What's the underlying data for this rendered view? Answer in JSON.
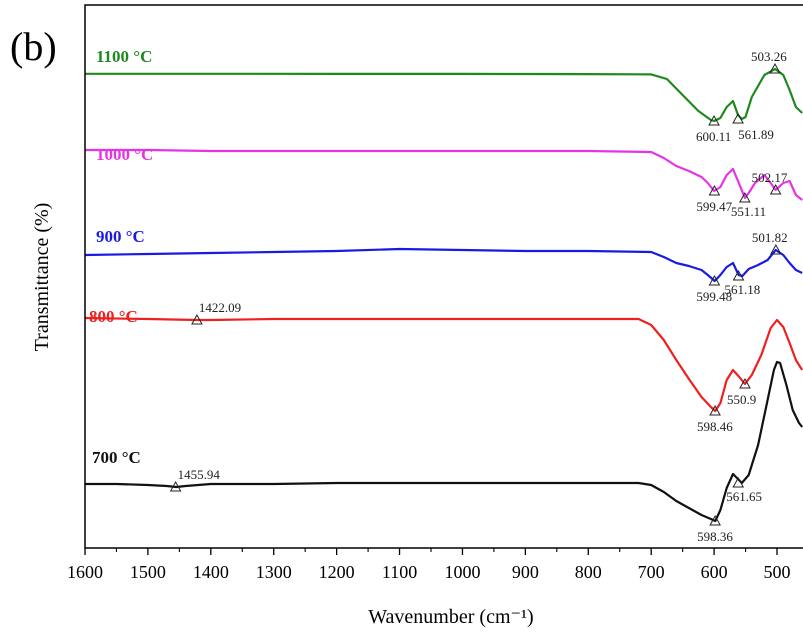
{
  "panel_label": "(b)",
  "chart_data": {
    "type": "line",
    "title": "",
    "xlabel": "Wavenumber (cm⁻¹)",
    "ylabel": "Transmittance (%)",
    "xlim": [
      1600,
      460
    ],
    "x_reversed": true,
    "y_ticks_shown": false,
    "grid": false,
    "x_ticks": [
      "1600",
      "1500",
      "1400",
      "1300",
      "1200",
      "1100",
      "1000",
      "900",
      "800",
      "700",
      "600",
      "500"
    ],
    "series": [
      {
        "name": "1100 °C",
        "color": "#1e8a1e",
        "points": [
          [
            1600,
            68.8
          ],
          [
            1400,
            68.8
          ],
          [
            1200,
            68.9
          ],
          [
            1000,
            68.9
          ],
          [
            900,
            69.0
          ],
          [
            800,
            69.1
          ],
          [
            700,
            69.4
          ],
          [
            675,
            74
          ],
          [
            650,
            90
          ],
          [
            625,
            106
          ],
          [
            605,
            115
          ],
          [
            600,
            116
          ],
          [
            590,
            113
          ],
          [
            580,
            102
          ],
          [
            570,
            96
          ],
          [
            562,
            110
          ],
          [
            556,
            114
          ],
          [
            550,
            112
          ],
          [
            540,
            92
          ],
          [
            520,
            70
          ],
          [
            503,
            64
          ],
          [
            490,
            70
          ],
          [
            480,
            85
          ],
          [
            470,
            102
          ],
          [
            460,
            108
          ]
        ],
        "peaks": [
          {
            "x": 600.11,
            "y": 116,
            "label": "600.11"
          },
          {
            "x": 561.89,
            "y": 114,
            "label": "561.89"
          },
          {
            "x": 503.26,
            "y": 64,
            "label": "503.26"
          }
        ]
      },
      {
        "name": "1000 °C",
        "color": "#e633e6",
        "points": [
          [
            1600,
            145
          ],
          [
            1500,
            145
          ],
          [
            1400,
            146
          ],
          [
            1300,
            146
          ],
          [
            1200,
            146
          ],
          [
            1100,
            146
          ],
          [
            1000,
            146
          ],
          [
            900,
            146
          ],
          [
            800,
            146
          ],
          [
            700,
            147
          ],
          [
            680,
            153
          ],
          [
            660,
            161
          ],
          [
            640,
            166
          ],
          [
            620,
            172
          ],
          [
            610,
            178
          ],
          [
            600,
            186
          ],
          [
            590,
            182
          ],
          [
            580,
            170
          ],
          [
            570,
            164
          ],
          [
            562,
            176
          ],
          [
            551,
            193
          ],
          [
            545,
            188
          ],
          [
            535,
            178
          ],
          [
            520,
            170
          ],
          [
            510,
            178
          ],
          [
            502,
            185
          ],
          [
            490,
            178
          ],
          [
            480,
            176
          ],
          [
            470,
            190
          ],
          [
            460,
            195
          ]
        ],
        "peaks": [
          {
            "x": 599.47,
            "y": 186,
            "label": "599.47"
          },
          {
            "x": 551.11,
            "y": 193,
            "label": "551.11"
          },
          {
            "x": 502.17,
            "y": 185,
            "label": "502.17"
          }
        ]
      },
      {
        "name": "900 °C",
        "color": "#1a1ae6",
        "points": [
          [
            1600,
            250
          ],
          [
            1500,
            249
          ],
          [
            1400,
            248
          ],
          [
            1300,
            247
          ],
          [
            1200,
            246
          ],
          [
            1100,
            244
          ],
          [
            1000,
            245
          ],
          [
            900,
            246
          ],
          [
            800,
            246
          ],
          [
            700,
            247
          ],
          [
            680,
            252
          ],
          [
            660,
            258
          ],
          [
            640,
            261
          ],
          [
            620,
            265
          ],
          [
            610,
            270
          ],
          [
            599,
            276
          ],
          [
            590,
            270
          ],
          [
            580,
            262
          ],
          [
            570,
            258
          ],
          [
            561,
            270
          ],
          [
            555,
            271
          ],
          [
            545,
            264
          ],
          [
            530,
            260
          ],
          [
            515,
            255
          ],
          [
            502,
            245
          ],
          [
            490,
            250
          ],
          [
            480,
            258
          ],
          [
            470,
            265
          ],
          [
            460,
            268
          ]
        ],
        "peaks": [
          {
            "x": 599.48,
            "y": 276,
            "label": "599.48"
          },
          {
            "x": 561.18,
            "y": 271,
            "label": "561.18"
          },
          {
            "x": 501.82,
            "y": 245,
            "label": "501.82"
          }
        ]
      },
      {
        "name": "800 °C",
        "color": "#ee2020",
        "points": [
          [
            1600,
            313
          ],
          [
            1500,
            314
          ],
          [
            1422,
            315
          ],
          [
            1400,
            315
          ],
          [
            1300,
            314
          ],
          [
            1200,
            314
          ],
          [
            1100,
            314
          ],
          [
            1000,
            314
          ],
          [
            900,
            314
          ],
          [
            800,
            314
          ],
          [
            720,
            314
          ],
          [
            700,
            320
          ],
          [
            680,
            335
          ],
          [
            660,
            355
          ],
          [
            640,
            374
          ],
          [
            620,
            392
          ],
          [
            605,
            402
          ],
          [
            598,
            406
          ],
          [
            590,
            398
          ],
          [
            580,
            375
          ],
          [
            570,
            365
          ],
          [
            560,
            372
          ],
          [
            551,
            379
          ],
          [
            540,
            370
          ],
          [
            525,
            350
          ],
          [
            510,
            323
          ],
          [
            500,
            315
          ],
          [
            490,
            322
          ],
          [
            480,
            338
          ],
          [
            470,
            355
          ],
          [
            460,
            365
          ]
        ],
        "peaks": [
          {
            "x": 1422.09,
            "y": 315,
            "label": "1422.09"
          },
          {
            "x": 598.46,
            "y": 406,
            "label": "598.46"
          },
          {
            "x": 550.9,
            "y": 379,
            "label": "550.9"
          }
        ]
      },
      {
        "name": "700 °C",
        "color": "#111111",
        "points": [
          [
            1600,
            479
          ],
          [
            1550,
            479
          ],
          [
            1500,
            480
          ],
          [
            1470,
            481
          ],
          [
            1455,
            482
          ],
          [
            1440,
            481
          ],
          [
            1420,
            480
          ],
          [
            1400,
            479
          ],
          [
            1300,
            479
          ],
          [
            1200,
            478
          ],
          [
            1100,
            478
          ],
          [
            1000,
            478
          ],
          [
            900,
            478
          ],
          [
            800,
            478
          ],
          [
            720,
            478
          ],
          [
            700,
            480
          ],
          [
            680,
            487
          ],
          [
            660,
            496
          ],
          [
            640,
            503
          ],
          [
            620,
            510
          ],
          [
            605,
            514
          ],
          [
            598,
            516
          ],
          [
            590,
            505
          ],
          [
            580,
            483
          ],
          [
            570,
            469
          ],
          [
            562,
            474
          ],
          [
            556,
            478
          ],
          [
            545,
            470
          ],
          [
            530,
            440
          ],
          [
            515,
            395
          ],
          [
            505,
            365
          ],
          [
            500,
            357
          ],
          [
            495,
            358
          ],
          [
            485,
            380
          ],
          [
            475,
            405
          ],
          [
            465,
            418
          ],
          [
            460,
            422
          ]
        ],
        "peaks": [
          {
            "x": 1455.94,
            "y": 482,
            "label": "1455.94"
          },
          {
            "x": 598.36,
            "y": 516,
            "label": "598.36"
          },
          {
            "x": 561.65,
            "y": 478,
            "label": "561.65"
          }
        ]
      }
    ]
  }
}
